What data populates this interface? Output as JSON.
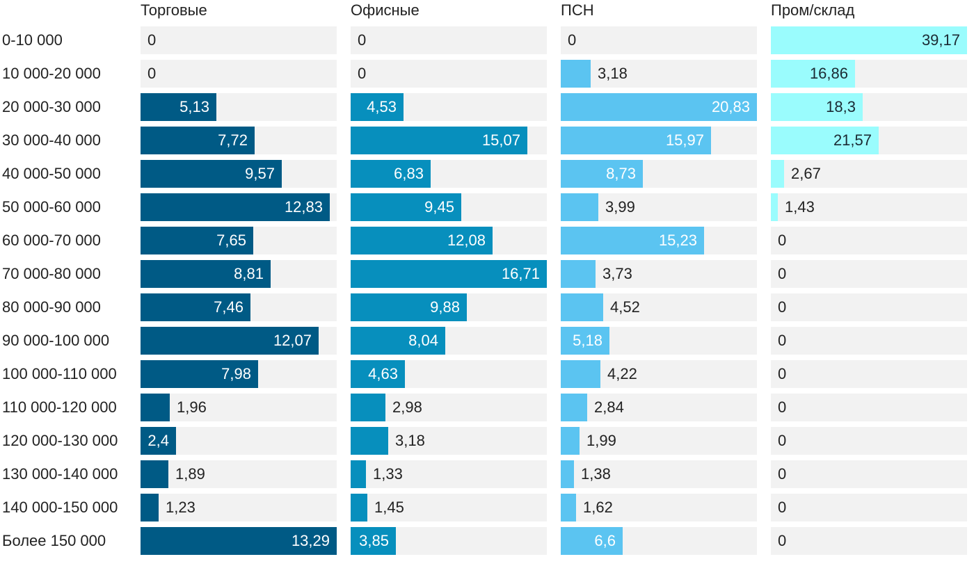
{
  "chart_data": {
    "type": "bar",
    "orientation": "horizontal",
    "title": "",
    "categories": [
      "0-10 000",
      "10 000-20 000",
      "20 000-30 000",
      "30 000-40 000",
      "40 000-50 000",
      "50 000-60 000",
      "60 000-70 000",
      "70 000-80 000",
      "80 000-90 000",
      "90 000-100 000",
      "100 000-110 000",
      "110 000-120 000",
      "120 000-130 000",
      "130 000-140 000",
      "140 000-150 000",
      "Более 150 000"
    ],
    "series": [
      {
        "name": "Торговые",
        "color": "#005a85",
        "xlim": [
          0,
          13.29
        ],
        "values": [
          0,
          0,
          5.13,
          7.72,
          9.57,
          12.83,
          7.65,
          8.81,
          7.46,
          12.07,
          7.98,
          1.96,
          2.4,
          1.89,
          1.23,
          13.29
        ],
        "labels": [
          "0",
          "0",
          "5,13",
          "7,72",
          "9,57",
          "12,83",
          "7,65",
          "8,81",
          "7,46",
          "12,07",
          "7,98",
          "1,96",
          "2,4",
          "1,89",
          "1,23",
          "13,29"
        ]
      },
      {
        "name": "Офисные",
        "color": "#078fbd",
        "xlim": [
          0,
          16.71
        ],
        "values": [
          0,
          0,
          4.53,
          15.07,
          6.83,
          9.45,
          12.08,
          16.71,
          9.88,
          8.04,
          4.63,
          2.98,
          3.18,
          1.33,
          1.45,
          3.85
        ],
        "labels": [
          "0",
          "0",
          "4,53",
          "15,07",
          "6,83",
          "9,45",
          "12,08",
          "16,71",
          "9,88",
          "8,04",
          "4,63",
          "2,98",
          "3,18",
          "1,33",
          "1,45",
          "3,85"
        ]
      },
      {
        "name": "ПСН",
        "color": "#5bc4f1",
        "xlim": [
          0,
          20.83
        ],
        "values": [
          0,
          3.18,
          20.83,
          15.97,
          8.73,
          3.99,
          15.23,
          3.73,
          4.52,
          5.18,
          4.22,
          2.84,
          1.99,
          1.38,
          1.62,
          6.6
        ],
        "labels": [
          "0",
          "3,18",
          "20,83",
          "15,97",
          "8,73",
          "3,99",
          "15,23",
          "3,73",
          "4,52",
          "5,18",
          "4,22",
          "2,84",
          "1,99",
          "1,38",
          "1,62",
          "6,6"
        ]
      },
      {
        "name": "Пром/склад",
        "color": "#9afcfd",
        "xlim": [
          0,
          39.17
        ],
        "values": [
          39.17,
          16.86,
          18.3,
          21.57,
          2.67,
          1.43,
          0,
          0,
          0,
          0,
          0,
          0,
          0,
          0,
          0,
          0
        ],
        "labels": [
          "39,17",
          "16,86",
          "18,3",
          "21,57",
          "2,67",
          "1,43",
          "0",
          "0",
          "0",
          "0",
          "0",
          "0",
          "0",
          "0",
          "0",
          "0"
        ]
      }
    ]
  }
}
